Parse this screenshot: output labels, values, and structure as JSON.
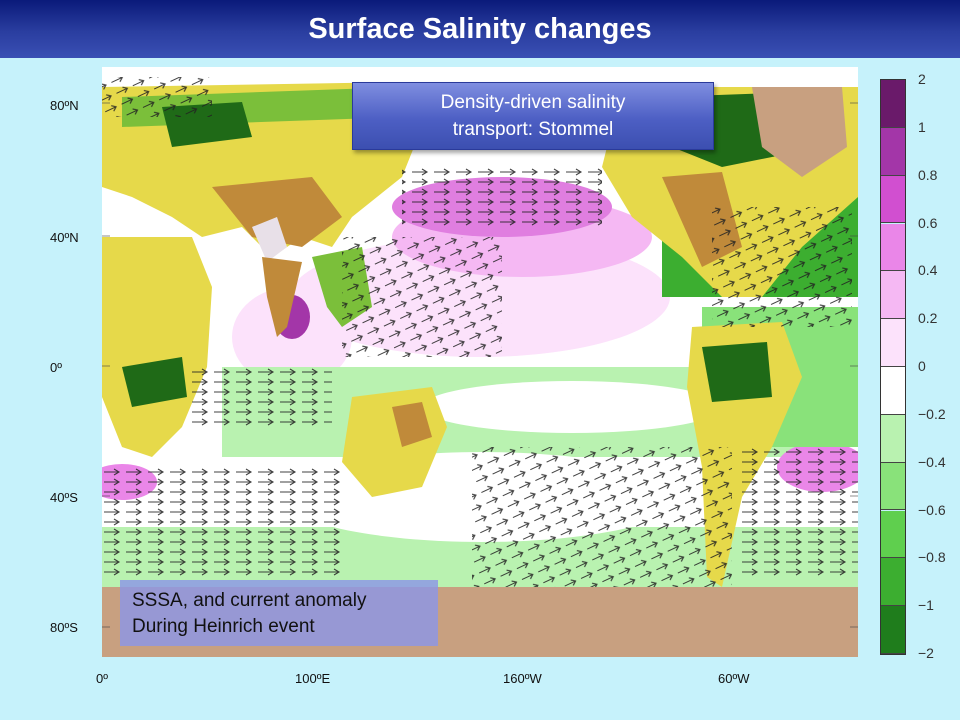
{
  "title": "Surface Salinity changes",
  "callouts": {
    "top_line1": "Density-driven salinity",
    "top_line2": "transport: Stommel",
    "bottom_line1": "SSSA, and current anomaly",
    "bottom_line2": "During Heinrich event"
  },
  "axes": {
    "lat_labels": [
      "80ºN",
      "40ºN",
      "0º",
      "40ºS",
      "80ºS"
    ],
    "lon_labels": [
      "0º",
      "100ºE",
      "160ºW",
      "60ºW"
    ]
  },
  "colorbar": {
    "labels": [
      "2",
      "1",
      "0.8",
      "0.6",
      "0.4",
      "0.2",
      "0",
      "−0.2",
      "−0.4",
      "−0.6",
      "−0.8",
      "−1",
      "−2"
    ],
    "colors": [
      "#6a1a6a",
      "#a336a8",
      "#d14fd0",
      "#ea86e8",
      "#f5b8f3",
      "#fce2fb",
      "#ffffff",
      "#b9f2b0",
      "#89e27a",
      "#5fcf4e",
      "#3cae30",
      "#1f7d1c"
    ]
  },
  "map_colors": {
    "ocean": "#ffffff",
    "land_yellow": "#e6d94a",
    "land_brown": "#c08a3a",
    "land_darkgreen": "#1f6a17",
    "land_green": "#7bbf3a",
    "ice": "#c8a080",
    "shelf_cyan": "#b5f3fb"
  }
}
